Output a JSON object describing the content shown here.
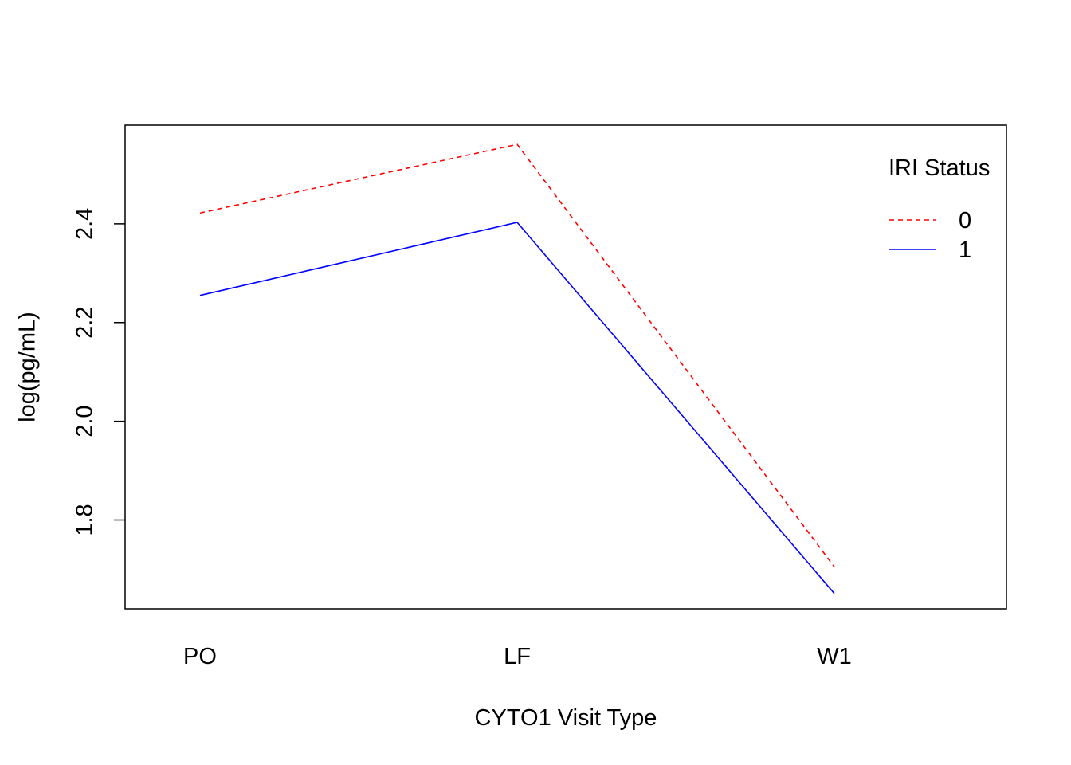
{
  "chart_data": {
    "type": "line",
    "title": "",
    "xlabel": "CYTO1 Visit Type",
    "ylabel": "log(pg/mL)",
    "categories": [
      "PO",
      "LF",
      "W1"
    ],
    "ylim": [
      1.62,
      2.6
    ],
    "y_ticks": [
      1.8,
      2.0,
      2.2,
      2.4
    ],
    "y_tick_labels": [
      "1.8",
      "2.0",
      "2.2",
      "2.4"
    ],
    "grid": false,
    "legend": {
      "title": "IRI Status",
      "placement": "top-right",
      "boxed": false
    },
    "series": [
      {
        "name": "0",
        "values": [
          2.422,
          2.561,
          1.705
        ],
        "color": "#ff0000",
        "line_style": "dashed"
      },
      {
        "name": "1",
        "values": [
          2.255,
          2.403,
          1.651
        ],
        "color": "#0000ff",
        "line_style": "solid"
      }
    ]
  }
}
